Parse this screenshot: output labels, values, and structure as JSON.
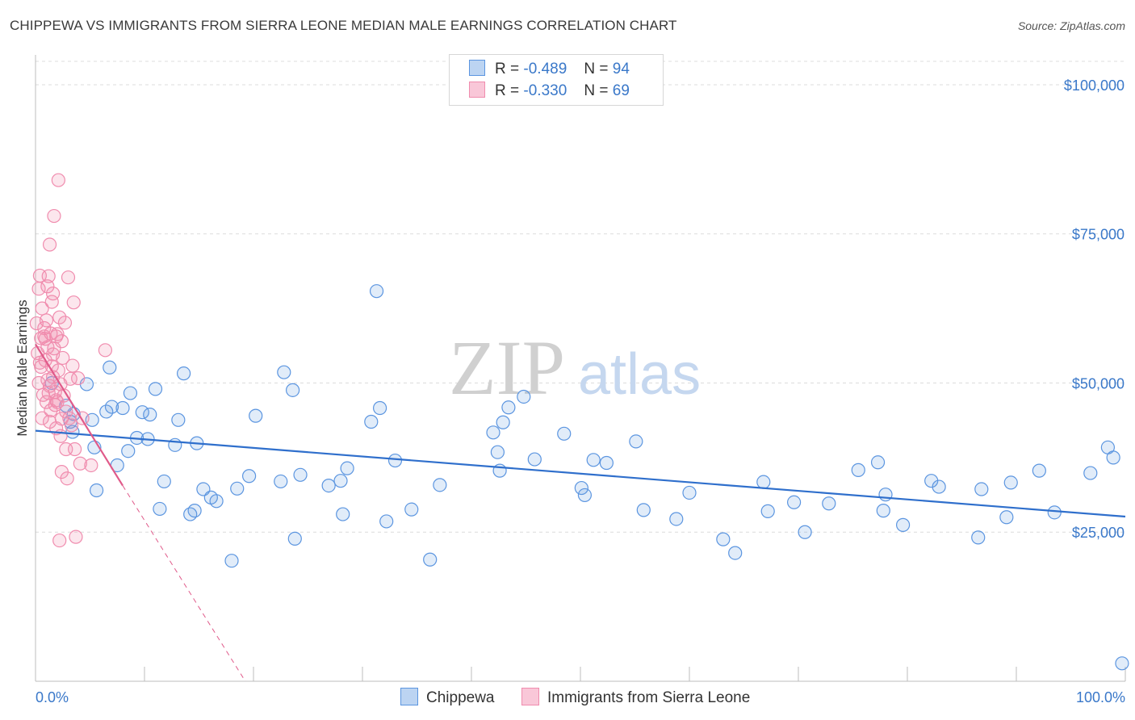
{
  "title": "CHIPPEWA VS IMMIGRANTS FROM SIERRA LEONE MEDIAN MALE EARNINGS CORRELATION CHART",
  "source": "Source: ZipAtlas.com",
  "watermark": {
    "zip": "ZIP",
    "atlas": "atlas"
  },
  "legend": {
    "r_label": "R =",
    "n_label": "N =",
    "series": [
      {
        "name": "Chippewa",
        "r": "-0.489",
        "n": "94"
      },
      {
        "name": "Immigrants from Sierra Leone",
        "r": "-0.330",
        "n": "69"
      }
    ]
  },
  "chart_data": {
    "type": "scatter",
    "title": "CHIPPEWA VS IMMIGRANTS FROM SIERRA LEONE MEDIAN MALE EARNINGS CORRELATION CHART",
    "xlabel": "",
    "ylabel": "Median Male Earnings",
    "xlim": [
      0,
      100
    ],
    "ylim": [
      0,
      105000
    ],
    "x_tick_labels": [
      "0.0%",
      "100.0%"
    ],
    "y_ticks": [
      25000,
      50000,
      75000,
      100000
    ],
    "y_tick_labels": [
      "$25,000",
      "$50,000",
      "$75,000",
      "$100,000"
    ],
    "colors": {
      "Chippewa": "#5b95e0",
      "Immigrants from Sierra Leone": "#f08cae",
      "Chippewa_line": "#2f6fcc",
      "Immigrants from Sierra Leone_line": "#e05a8a"
    },
    "series": [
      {
        "name": "Chippewa",
        "trend": {
          "x0": 0,
          "y0": 42000,
          "x1": 100,
          "y1": 27600,
          "dashed_to": null
        },
        "points": [
          [
            3.2,
            43500
          ],
          [
            3.5,
            44800
          ],
          [
            3.4,
            41800
          ],
          [
            4.7,
            49800
          ],
          [
            5.2,
            43800
          ],
          [
            5.6,
            32000
          ],
          [
            5.4,
            39200
          ],
          [
            6.5,
            45200
          ],
          [
            6.8,
            52600
          ],
          [
            7.5,
            36200
          ],
          [
            8.0,
            45800
          ],
          [
            8.5,
            38600
          ],
          [
            8.7,
            48300
          ],
          [
            9.3,
            40800
          ],
          [
            9.8,
            45100
          ],
          [
            10.3,
            40600
          ],
          [
            10.5,
            44700
          ],
          [
            11.4,
            28900
          ],
          [
            11.8,
            33500
          ],
          [
            12.8,
            39600
          ],
          [
            13.1,
            43800
          ],
          [
            13.6,
            51600
          ],
          [
            14.2,
            28000
          ],
          [
            14.6,
            28600
          ],
          [
            14.8,
            39900
          ],
          [
            15.4,
            32200
          ],
          [
            16.1,
            30800
          ],
          [
            16.6,
            30200
          ],
          [
            18.0,
            20200
          ],
          [
            18.5,
            32300
          ],
          [
            19.6,
            34400
          ],
          [
            20.2,
            44500
          ],
          [
            22.5,
            33500
          ],
          [
            22.8,
            51800
          ],
          [
            23.6,
            48800
          ],
          [
            23.8,
            23900
          ],
          [
            24.3,
            34600
          ],
          [
            26.9,
            32800
          ],
          [
            28.0,
            33600
          ],
          [
            28.2,
            28000
          ],
          [
            28.6,
            35700
          ],
          [
            30.8,
            43500
          ],
          [
            31.3,
            65400
          ],
          [
            31.6,
            45800
          ],
          [
            32.2,
            26800
          ],
          [
            33.0,
            37000
          ],
          [
            34.5,
            28800
          ],
          [
            36.2,
            20400
          ],
          [
            37.1,
            32900
          ],
          [
            42.0,
            41700
          ],
          [
            42.4,
            38400
          ],
          [
            42.6,
            35300
          ],
          [
            42.9,
            43400
          ],
          [
            43.4,
            45900
          ],
          [
            44.8,
            47700
          ],
          [
            45.8,
            37200
          ],
          [
            48.5,
            41500
          ],
          [
            50.1,
            32400
          ],
          [
            50.4,
            31200
          ],
          [
            51.2,
            37100
          ],
          [
            52.4,
            36600
          ],
          [
            55.1,
            40200
          ],
          [
            55.8,
            28700
          ],
          [
            58.8,
            27200
          ],
          [
            60.0,
            31600
          ],
          [
            63.1,
            23800
          ],
          [
            64.2,
            21500
          ],
          [
            66.8,
            33400
          ],
          [
            67.2,
            28500
          ],
          [
            69.6,
            30000
          ],
          [
            70.6,
            25000
          ],
          [
            72.8,
            29800
          ],
          [
            75.5,
            35400
          ],
          [
            77.3,
            36700
          ],
          [
            77.8,
            28600
          ],
          [
            78.0,
            31300
          ],
          [
            79.6,
            26200
          ],
          [
            82.2,
            33600
          ],
          [
            82.9,
            32600
          ],
          [
            86.5,
            24100
          ],
          [
            86.8,
            32200
          ],
          [
            89.1,
            27500
          ],
          [
            89.5,
            33300
          ],
          [
            92.1,
            35300
          ],
          [
            93.5,
            28300
          ],
          [
            96.8,
            34900
          ],
          [
            98.4,
            39200
          ],
          [
            98.9,
            37500
          ],
          [
            99.7,
            3000
          ],
          [
            1.5,
            50000
          ],
          [
            2.8,
            46200
          ],
          [
            7.0,
            46000
          ],
          [
            11.0,
            49000
          ]
        ]
      },
      {
        "name": "Immigrants from Sierra Leone",
        "trend": {
          "x0": 0,
          "y0": 56500,
          "x1": 8.0,
          "y1": 32800,
          "dashed_to": {
            "x": 22.0,
            "y": -8000
          }
        },
        "points": [
          [
            0.1,
            60000
          ],
          [
            0.2,
            55000
          ],
          [
            0.3,
            50000
          ],
          [
            0.3,
            65800
          ],
          [
            0.4,
            68000
          ],
          [
            0.5,
            57500
          ],
          [
            0.5,
            52700
          ],
          [
            0.6,
            62500
          ],
          [
            0.7,
            48000
          ],
          [
            0.8,
            57800
          ],
          [
            0.9,
            53800
          ],
          [
            1.0,
            46800
          ],
          [
            1.0,
            60500
          ],
          [
            1.1,
            50500
          ],
          [
            1.1,
            56000
          ],
          [
            1.2,
            67900
          ],
          [
            1.3,
            73200
          ],
          [
            1.3,
            49500
          ],
          [
            1.4,
            58300
          ],
          [
            1.4,
            45400
          ],
          [
            1.5,
            63600
          ],
          [
            1.6,
            51000
          ],
          [
            1.6,
            54800
          ],
          [
            1.7,
            78000
          ],
          [
            1.7,
            55800
          ],
          [
            1.8,
            48500
          ],
          [
            1.9,
            57800
          ],
          [
            1.9,
            42400
          ],
          [
            2.0,
            46800
          ],
          [
            2.1,
            52100
          ],
          [
            2.1,
            84000
          ],
          [
            2.2,
            61000
          ],
          [
            2.3,
            49800
          ],
          [
            2.3,
            41100
          ],
          [
            2.4,
            57000
          ],
          [
            2.4,
            35100
          ],
          [
            2.5,
            54200
          ],
          [
            2.6,
            47900
          ],
          [
            2.7,
            60100
          ],
          [
            2.8,
            38900
          ],
          [
            2.8,
            45200
          ],
          [
            2.9,
            34000
          ],
          [
            3.0,
            67700
          ],
          [
            3.1,
            44100
          ],
          [
            3.2,
            50700
          ],
          [
            3.3,
            42900
          ],
          [
            3.4,
            52900
          ],
          [
            3.5,
            63500
          ],
          [
            3.6,
            38900
          ],
          [
            3.7,
            24200
          ],
          [
            3.9,
            50800
          ],
          [
            4.1,
            36500
          ],
          [
            4.3,
            44100
          ],
          [
            5.1,
            36200
          ],
          [
            6.4,
            55500
          ],
          [
            2.2,
            23600
          ],
          [
            0.8,
            59200
          ],
          [
            1.2,
            48300
          ],
          [
            1.5,
            52800
          ],
          [
            1.8,
            46300
          ],
          [
            2.4,
            44000
          ],
          [
            0.6,
            44100
          ],
          [
            1.1,
            66200
          ],
          [
            0.9,
            57400
          ],
          [
            1.3,
            43500
          ],
          [
            1.6,
            65000
          ],
          [
            0.4,
            53400
          ],
          [
            2.0,
            58200
          ],
          [
            1.9,
            47100
          ]
        ]
      }
    ]
  }
}
